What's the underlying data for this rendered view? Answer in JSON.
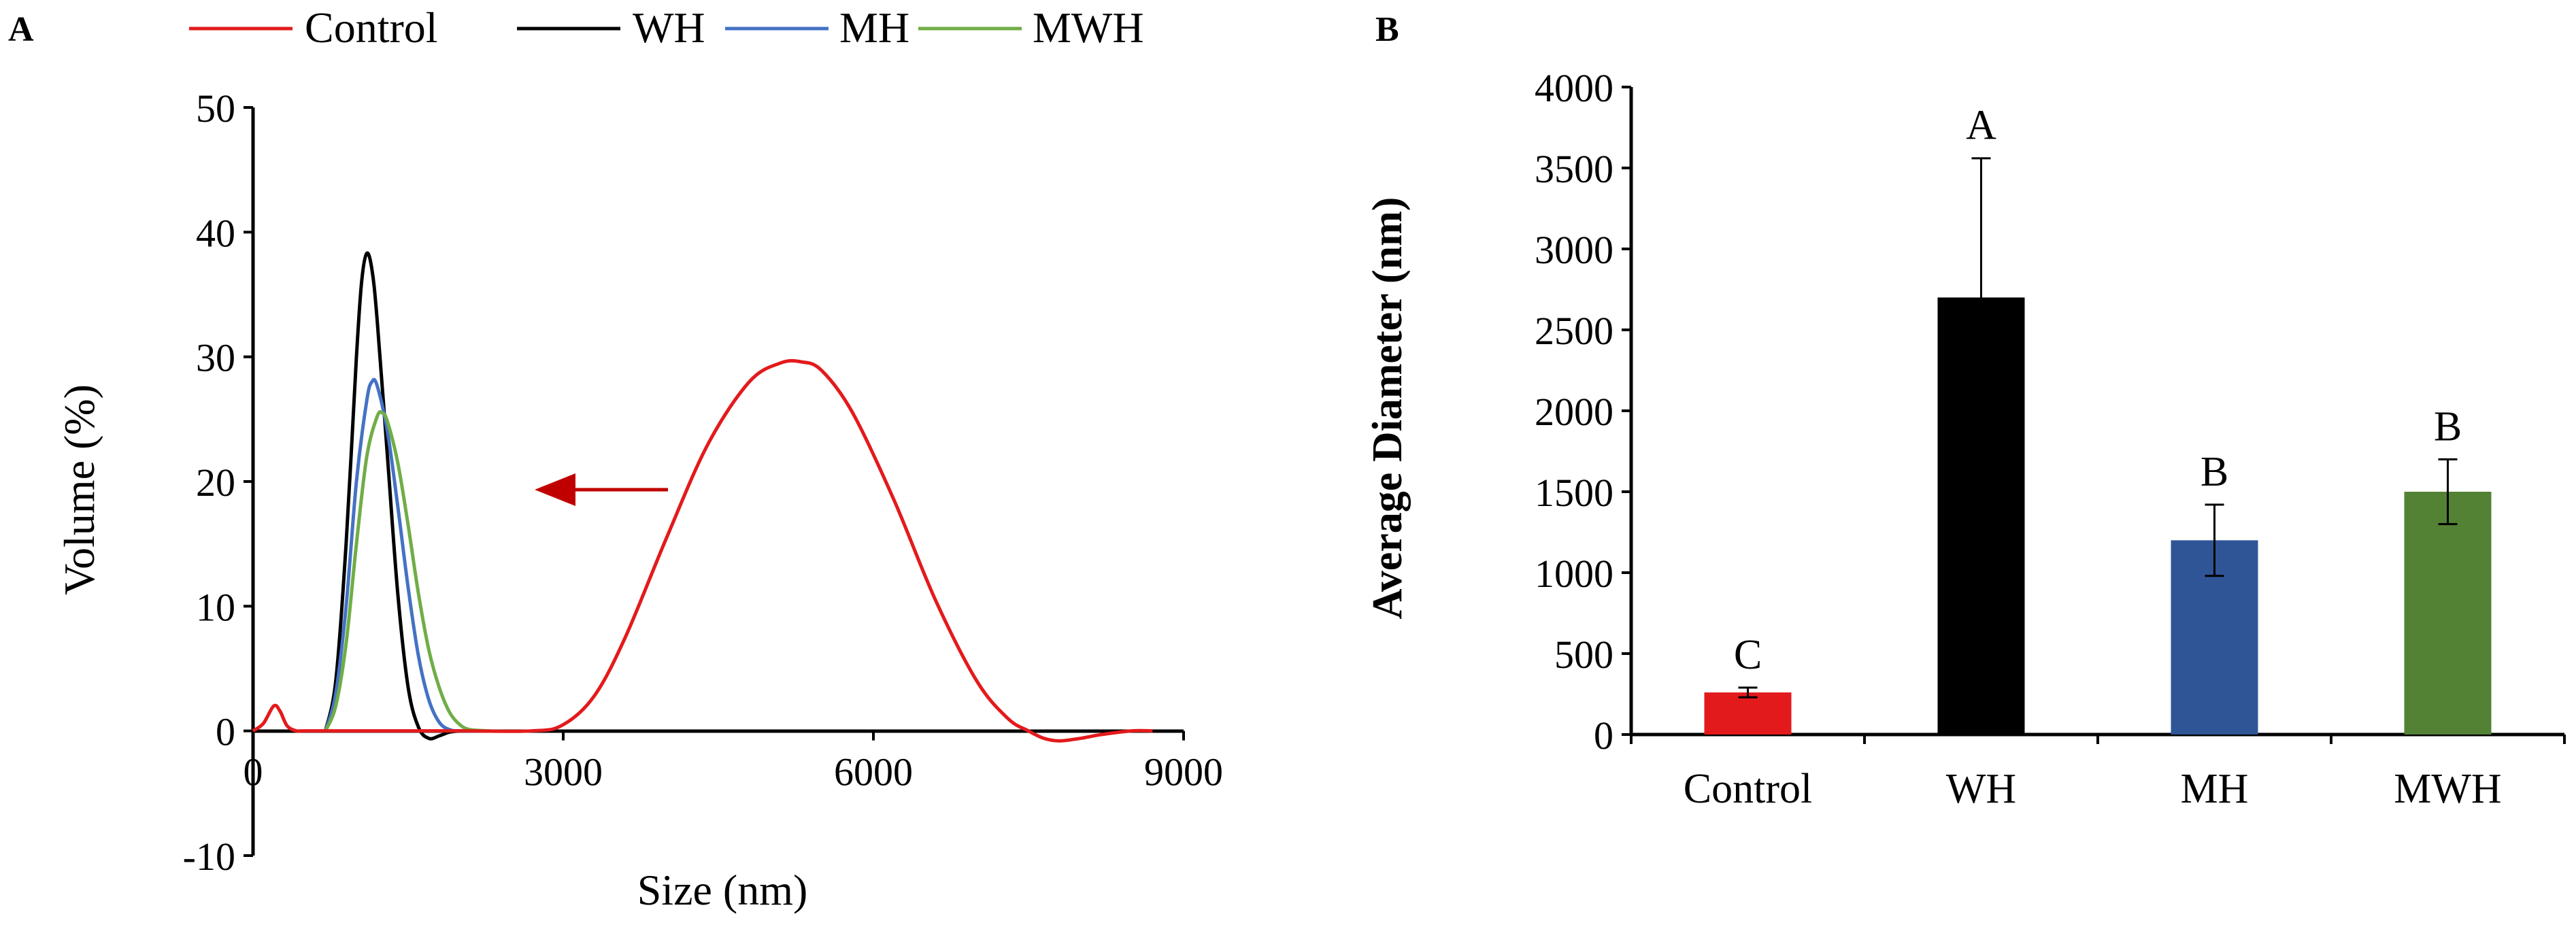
{
  "colors": {
    "control": "#e31a1c",
    "wh": "#000000",
    "mh": "#2f5597",
    "mh_line": "#4472c4",
    "mwh": "#548235",
    "mwh_line": "#70ad47",
    "arrow": "#c00000"
  },
  "chart_data": [
    {
      "panel_label": "A",
      "type": "line",
      "xlabel": "Size (nm)",
      "ylabel": "Volume (%)",
      "xlim": [
        0,
        9000
      ],
      "ylim": [
        -10,
        50
      ],
      "x_ticks": [
        0,
        3000,
        6000,
        9000
      ],
      "y_ticks": [
        -10,
        0,
        10,
        20,
        30,
        40,
        50
      ],
      "legend_position": "top",
      "series": [
        {
          "name": "Control",
          "color": "#e31a1c",
          "x": [
            0,
            100,
            200,
            260,
            330,
            420,
            500,
            1000,
            2000,
            2700,
            3000,
            3300,
            3600,
            4000,
            4400,
            4800,
            5100,
            5300,
            5500,
            5800,
            6200,
            6600,
            7000,
            7300,
            7500,
            7650,
            7800,
            8000,
            8200,
            8500,
            8700
          ],
          "y": [
            0,
            0.6,
            2.0,
            1.6,
            0.4,
            0,
            0,
            0,
            0,
            0,
            0.5,
            2.8,
            7.5,
            15.5,
            23.0,
            28.0,
            29.5,
            29.6,
            28.9,
            25.5,
            18.5,
            10.5,
            4.0,
            1.0,
            0,
            -0.6,
            -0.8,
            -0.6,
            -0.3,
            0,
            0
          ]
        },
        {
          "name": "WH",
          "color": "#000000",
          "x": [
            700,
            800,
            900,
            1000,
            1050,
            1100,
            1150,
            1200,
            1300,
            1400,
            1500,
            1600,
            1700,
            1800,
            1900,
            2000
          ],
          "y": [
            0,
            4.0,
            15.0,
            30.0,
            36.0,
            38.3,
            37.0,
            33.0,
            22.0,
            11.0,
            3.5,
            0.3,
            -0.6,
            -0.4,
            -0.1,
            0
          ]
        },
        {
          "name": "MH",
          "color": "#4472c4",
          "x": [
            700,
            800,
            900,
            1000,
            1100,
            1150,
            1200,
            1300,
            1400,
            1500,
            1600,
            1700,
            1800,
            1900,
            2000,
            2200
          ],
          "y": [
            0,
            3.0,
            10.0,
            20.0,
            26.5,
            28.0,
            27.7,
            24.0,
            18.0,
            11.5,
            6.0,
            2.5,
            0.7,
            0.1,
            0,
            0
          ]
        },
        {
          "name": "MWH",
          "color": "#70ad47",
          "x": [
            700,
            800,
            900,
            1000,
            1100,
            1200,
            1250,
            1300,
            1400,
            1500,
            1600,
            1700,
            1800,
            1900,
            2000,
            2100,
            2300
          ],
          "y": [
            0,
            2.0,
            7.0,
            15.0,
            22.0,
            25.2,
            25.5,
            24.8,
            21.5,
            16.5,
            11.0,
            6.5,
            3.5,
            1.5,
            0.5,
            0.1,
            0
          ]
        }
      ]
    },
    {
      "panel_label": "B",
      "type": "bar",
      "xlabel": "",
      "ylabel": "Average Diameter (nm)",
      "ylim": [
        0,
        4000
      ],
      "y_ticks": [
        0,
        500,
        1000,
        1500,
        2000,
        2500,
        3000,
        3500,
        4000
      ],
      "categories": [
        "Control",
        "WH",
        "MH",
        "MWH"
      ],
      "values": [
        260,
        2700,
        1200,
        1500
      ],
      "errors": [
        30,
        860,
        220,
        200
      ],
      "significance_letters": [
        "C",
        "A",
        "B",
        "B"
      ],
      "bar_colors": [
        "#e31a1c",
        "#000000",
        "#2f5597",
        "#548235"
      ]
    }
  ]
}
